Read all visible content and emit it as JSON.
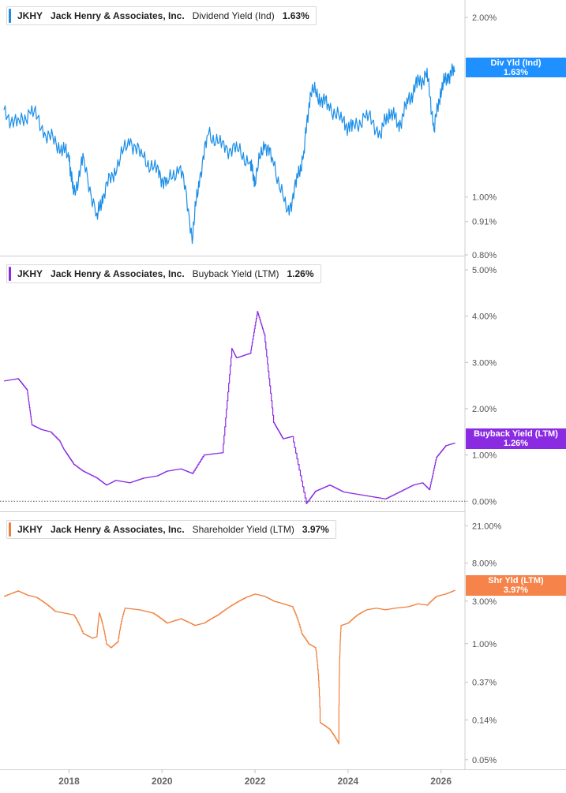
{
  "panels": [
    {
      "ticker": "JKHY",
      "company": "Jack Henry & Associates, Inc.",
      "metric": "Dividend Yield (Ind)",
      "value": "1.63%",
      "tag_label": "Div Yld (Ind)",
      "tag_value": "1.63%",
      "color": "#1a8ee8",
      "tag_color": "#1e90ff"
    },
    {
      "ticker": "JKHY",
      "company": "Jack Henry & Associates, Inc.",
      "metric": "Buyback Yield (LTM)",
      "value": "1.26%",
      "tag_label": "Buyback Yield (LTM)",
      "tag_value": "1.26%",
      "color": "#8a2be2",
      "tag_color": "#8a2be2"
    },
    {
      "ticker": "JKHY",
      "company": "Jack Henry & Associates, Inc.",
      "metric": "Shareholder Yield (LTM)",
      "value": "3.97%",
      "tag_label": "Shr Yld (LTM)",
      "tag_value": "3.97%",
      "color": "#f07f3c",
      "tag_color": "#f5834a"
    }
  ],
  "chart_data": [
    {
      "type": "line",
      "series": [
        {
          "name": "Dividend Yield (Ind)",
          "color": "#1a8ee8",
          "x": [
            2016.6,
            2016.9,
            2017.2,
            2017.5,
            2017.8,
            2018.0,
            2018.1,
            2018.3,
            2018.6,
            2018.75,
            2019.0,
            2019.3,
            2019.6,
            2019.9,
            2020.1,
            2020.4,
            2020.65,
            2020.8,
            2021.0,
            2021.3,
            2021.6,
            2021.9,
            2022.0,
            2022.2,
            2022.4,
            2022.7,
            2022.9,
            2023.05,
            2023.2,
            2023.4,
            2023.6,
            2023.9,
            2024.1,
            2024.4,
            2024.7,
            2024.9,
            2025.1,
            2025.3,
            2025.5,
            2025.7,
            2025.85,
            2026.0,
            2026.15,
            2026.3
          ],
          "y": [
            1.38,
            1.32,
            1.4,
            1.28,
            1.22,
            1.17,
            1.0,
            1.15,
            0.92,
            1.02,
            1.12,
            1.25,
            1.16,
            1.1,
            1.05,
            1.13,
            0.86,
            1.07,
            1.28,
            1.21,
            1.2,
            1.14,
            1.07,
            1.24,
            1.14,
            0.93,
            1.06,
            1.18,
            1.52,
            1.47,
            1.42,
            1.33,
            1.3,
            1.37,
            1.28,
            1.4,
            1.32,
            1.45,
            1.55,
            1.6,
            1.3,
            1.52,
            1.6,
            1.63
          ]
        }
      ],
      "y_ticks": [
        "2.00%",
        "1.00%",
        "0.91%",
        "0.80%"
      ],
      "ylim": [
        0.8,
        2.05
      ],
      "scale": "log"
    },
    {
      "type": "line",
      "series": [
        {
          "name": "Buyback Yield (LTM)",
          "color": "#8a2be2",
          "x": [
            2016.6,
            2016.9,
            2017.1,
            2017.2,
            2017.4,
            2017.6,
            2017.8,
            2017.9,
            2018.1,
            2018.3,
            2018.6,
            2018.8,
            2019.0,
            2019.3,
            2019.6,
            2019.9,
            2020.1,
            2020.4,
            2020.65,
            2020.9,
            2021.3,
            2021.5,
            2021.6,
            2021.9,
            2022.05,
            2022.2,
            2022.4,
            2022.6,
            2022.8,
            2023.1,
            2023.3,
            2023.6,
            2023.9,
            2024.2,
            2024.5,
            2024.8,
            2025.1,
            2025.4,
            2025.6,
            2025.75,
            2025.9,
            2026.1,
            2026.3
          ],
          "y": [
            2.6,
            2.65,
            2.4,
            1.65,
            1.55,
            1.5,
            1.3,
            1.1,
            0.8,
            0.65,
            0.5,
            0.35,
            0.45,
            0.4,
            0.5,
            0.55,
            0.65,
            0.7,
            0.6,
            1.0,
            1.05,
            3.3,
            3.1,
            3.2,
            4.1,
            3.6,
            1.7,
            1.35,
            1.4,
            -0.05,
            0.22,
            0.35,
            0.2,
            0.15,
            0.1,
            0.05,
            0.2,
            0.35,
            0.4,
            0.25,
            0.95,
            1.2,
            1.26
          ]
        }
      ],
      "y_ticks": [
        "5.00%",
        "4.00%",
        "3.00%",
        "2.00%",
        "1.00%",
        "0.00%"
      ],
      "ylim": [
        -0.2,
        5.0
      ],
      "scale": "linear"
    },
    {
      "type": "line",
      "series": [
        {
          "name": "Shareholder Yield (LTM)",
          "color": "#f07f3c",
          "x": [
            2016.6,
            2016.9,
            2017.1,
            2017.3,
            2017.5,
            2017.7,
            2017.9,
            2018.1,
            2018.3,
            2018.5,
            2018.6,
            2018.65,
            2018.8,
            2018.9,
            2019.05,
            2019.2,
            2019.5,
            2019.8,
            2020.1,
            2020.4,
            2020.7,
            2020.9,
            2021.2,
            2021.5,
            2021.8,
            2022.0,
            2022.2,
            2022.4,
            2022.6,
            2022.8,
            2023.0,
            2023.15,
            2023.3,
            2023.4,
            2023.6,
            2023.8,
            2023.85,
            2024.0,
            2024.2,
            2024.4,
            2024.6,
            2024.8,
            2025.0,
            2025.3,
            2025.5,
            2025.7,
            2025.9,
            2026.1,
            2026.3
          ],
          "y": [
            3.4,
            3.9,
            3.5,
            3.3,
            2.8,
            2.3,
            2.2,
            2.1,
            1.3,
            1.15,
            1.2,
            2.2,
            1.0,
            0.9,
            1.05,
            2.5,
            2.4,
            2.2,
            1.7,
            1.9,
            1.6,
            1.7,
            2.1,
            2.7,
            3.3,
            3.6,
            3.4,
            3.0,
            2.8,
            2.6,
            1.3,
            1.0,
            0.9,
            0.13,
            0.11,
            0.075,
            1.6,
            1.7,
            2.1,
            2.4,
            2.5,
            2.4,
            2.5,
            2.6,
            2.8,
            2.7,
            3.4,
            3.6,
            3.97
          ]
        }
      ],
      "y_ticks": [
        "21.00%",
        "8.00%",
        "3.00%",
        "1.00%",
        "0.37%",
        "0.14%",
        "0.05%"
      ],
      "ylim": [
        0.045,
        22
      ],
      "scale": "log"
    }
  ],
  "x_axis": {
    "ticks": [
      "2018",
      "2020",
      "2022",
      "2024",
      "2026"
    ],
    "values": [
      2018,
      2020,
      2022,
      2024,
      2026
    ],
    "xlim": [
      2016.6,
      2026.6
    ]
  }
}
